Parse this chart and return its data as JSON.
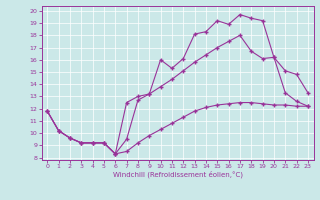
{
  "xlabel": "Windchill (Refroidissement éolien,°C)",
  "bg_color": "#cbe8e8",
  "line_color": "#993399",
  "grid_color": "#ffffff",
  "xlim": [
    -0.5,
    23.5
  ],
  "ylim": [
    7.8,
    20.4
  ],
  "xticks": [
    0,
    1,
    2,
    3,
    4,
    5,
    6,
    7,
    8,
    9,
    10,
    11,
    12,
    13,
    14,
    15,
    16,
    17,
    18,
    19,
    20,
    21,
    22,
    23
  ],
  "yticks": [
    8,
    9,
    10,
    11,
    12,
    13,
    14,
    15,
    16,
    17,
    18,
    19,
    20
  ],
  "line1_x": [
    0,
    1,
    2,
    3,
    4,
    5,
    6,
    7,
    8,
    9,
    10,
    11,
    12,
    13,
    14,
    15,
    16,
    17,
    18,
    19,
    20,
    21,
    22,
    23
  ],
  "line1_y": [
    11.8,
    10.2,
    9.6,
    9.2,
    9.2,
    9.2,
    8.3,
    9.5,
    12.7,
    13.2,
    16.0,
    15.3,
    16.1,
    18.1,
    18.3,
    19.2,
    18.9,
    19.7,
    19.4,
    19.2,
    16.2,
    15.1,
    14.8,
    13.3
  ],
  "line2_x": [
    0,
    1,
    2,
    3,
    4,
    5,
    6,
    7,
    8,
    9,
    10,
    11,
    12,
    13,
    14,
    15,
    16,
    17,
    18,
    19,
    20,
    21,
    22,
    23
  ],
  "line2_y": [
    11.8,
    10.2,
    9.6,
    9.2,
    9.2,
    9.2,
    8.3,
    12.5,
    13.0,
    13.2,
    13.8,
    14.4,
    15.1,
    15.8,
    16.4,
    17.0,
    17.5,
    18.0,
    16.7,
    16.1,
    16.2,
    13.3,
    12.6,
    12.2
  ],
  "line3_x": [
    0,
    1,
    2,
    3,
    4,
    5,
    6,
    7,
    8,
    9,
    10,
    11,
    12,
    13,
    14,
    15,
    16,
    17,
    18,
    19,
    20,
    21,
    22,
    23
  ],
  "line3_y": [
    11.8,
    10.2,
    9.6,
    9.2,
    9.2,
    9.2,
    8.3,
    8.5,
    9.2,
    9.8,
    10.3,
    10.8,
    11.3,
    11.8,
    12.1,
    12.3,
    12.4,
    12.5,
    12.5,
    12.4,
    12.3,
    12.3,
    12.2,
    12.2
  ]
}
